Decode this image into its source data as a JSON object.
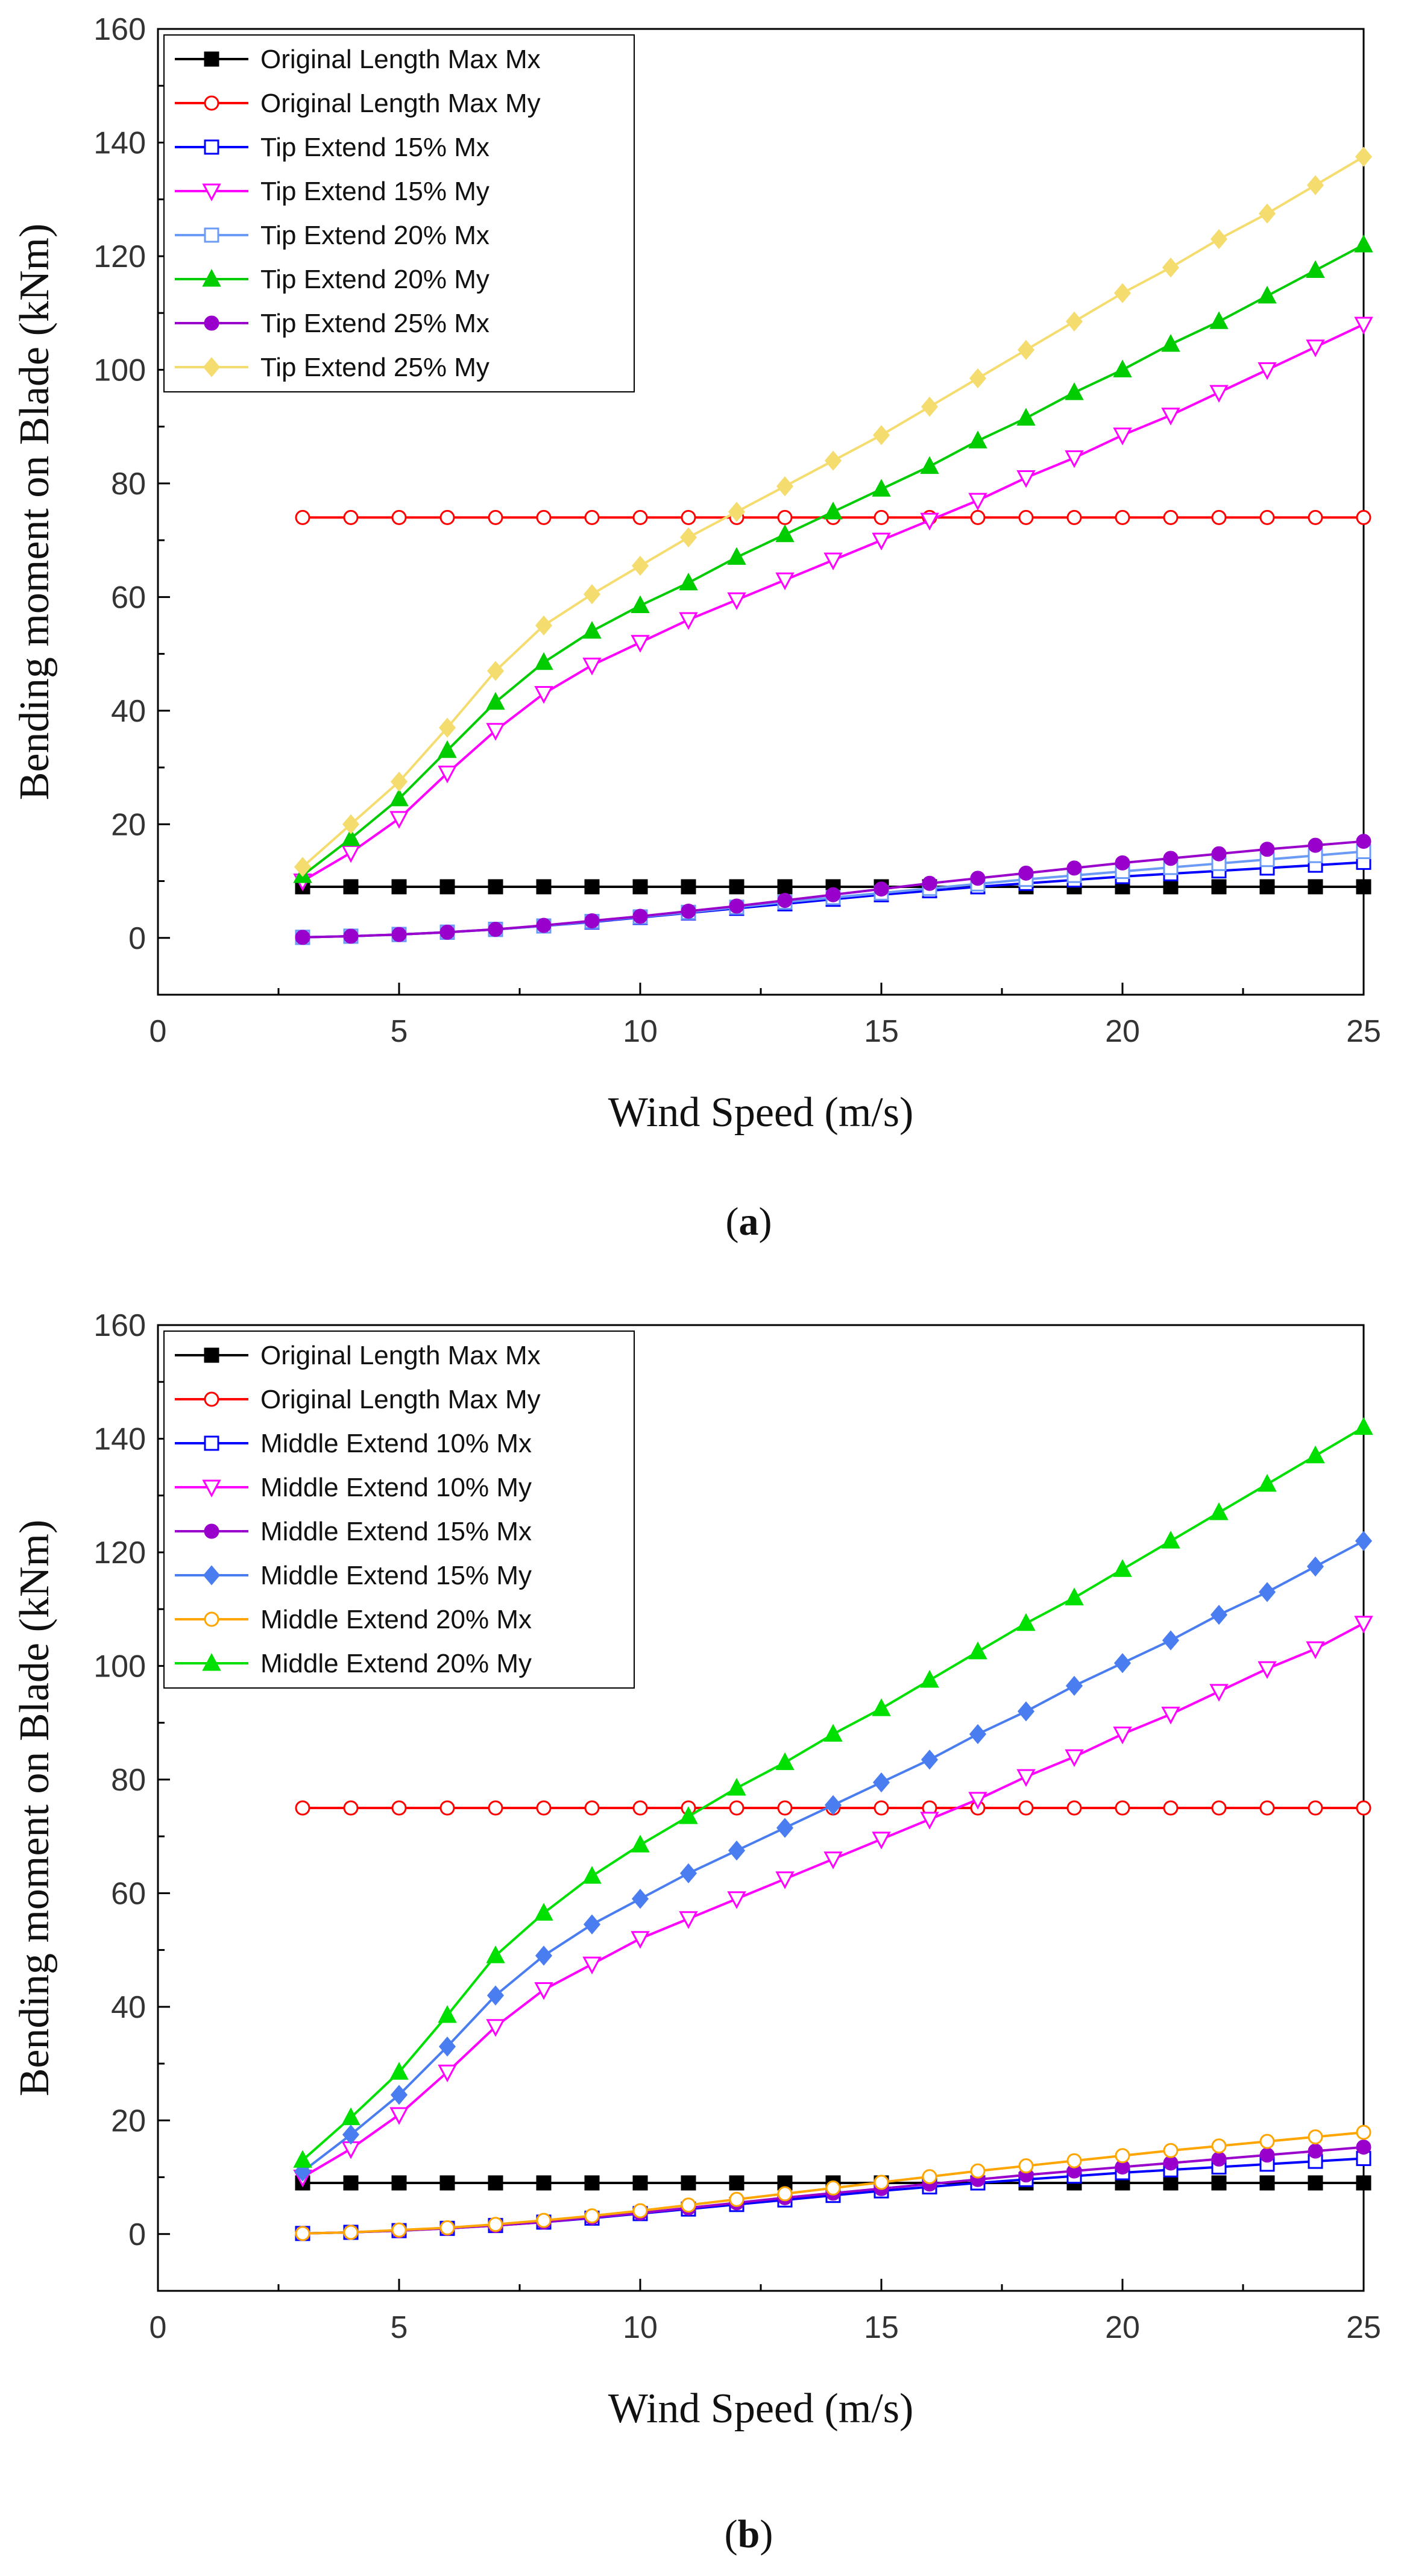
{
  "chart_data": [
    {
      "type": "line",
      "caption_open": "(",
      "caption": "a",
      "caption_close": ")",
      "xlabel": "Wind Speed (m/s)",
      "ylabel": "Bending moment on Blade (kNm)",
      "xlim": [
        0,
        25
      ],
      "ylim": [
        -10,
        160
      ],
      "xticks": [
        0,
        5,
        10,
        15,
        20,
        25
      ],
      "yticks": [
        0,
        20,
        40,
        60,
        80,
        100,
        120,
        140,
        160
      ],
      "x": [
        3,
        4,
        5,
        6,
        7,
        8,
        9,
        10,
        11,
        12,
        13,
        14,
        15,
        16,
        17,
        18,
        19,
        20,
        21,
        22,
        23,
        24,
        25
      ],
      "legend_position": "top-left",
      "series": [
        {
          "name": "Original Length Max Mx",
          "color": "#000000",
          "marker": "square",
          "filled": true,
          "values": [
            9,
            9,
            9,
            9,
            9,
            9,
            9,
            9,
            9,
            9,
            9,
            9,
            9,
            9,
            9,
            9,
            9,
            9,
            9,
            9,
            9,
            9,
            9
          ]
        },
        {
          "name": "Original Length Max My",
          "color": "#ff0000",
          "marker": "circle",
          "filled": false,
          "values": [
            74,
            74,
            74,
            74,
            74,
            74,
            74,
            74,
            74,
            74,
            74,
            74,
            74,
            74,
            74,
            74,
            74,
            74,
            74,
            74,
            74,
            74,
            74
          ]
        },
        {
          "name": "Tip Extend 15% Mx",
          "color": "#0000ff",
          "marker": "square",
          "filled": false,
          "values": [
            0.1,
            0.3,
            0.6,
            1.0,
            1.5,
            2.1,
            2.8,
            3.6,
            4.4,
            5.2,
            6.0,
            6.8,
            7.6,
            8.3,
            9.0,
            9.6,
            10.2,
            10.8,
            11.3,
            11.8,
            12.3,
            12.8,
            13.3
          ]
        },
        {
          "name": "Tip Extend 15% My",
          "color": "#ff00ff",
          "marker": "triangle-down",
          "filled": false,
          "values": [
            10,
            15,
            21,
            29,
            36.5,
            43,
            48,
            52,
            56,
            59.5,
            63,
            66.5,
            70,
            73.5,
            77,
            81,
            84.5,
            88.5,
            92,
            96,
            100,
            104,
            108
          ]
        },
        {
          "name": "Tip Extend 20% Mx",
          "color": "#6b9bf5",
          "marker": "square",
          "filled": false,
          "values": [
            0.1,
            0.3,
            0.6,
            1.0,
            1.5,
            2.1,
            2.9,
            3.7,
            4.5,
            5.4,
            6.3,
            7.1,
            7.9,
            8.7,
            9.5,
            10.3,
            11.0,
            11.7,
            12.4,
            13.1,
            13.8,
            14.5,
            15.2
          ]
        },
        {
          "name": "Tip Extend 20% My",
          "color": "#00cc00",
          "marker": "triangle-up",
          "filled": true,
          "values": [
            11,
            17.5,
            24.5,
            33,
            41.5,
            48.5,
            54,
            58.5,
            62.5,
            67,
            71,
            75,
            79,
            83,
            87.5,
            91.5,
            96,
            100,
            104.5,
            108.5,
            113,
            117.5,
            122
          ]
        },
        {
          "name": "Tip Extend 25% Mx",
          "color": "#9900cc",
          "marker": "circle",
          "filled": true,
          "values": [
            0.1,
            0.3,
            0.6,
            1.0,
            1.5,
            2.2,
            3.0,
            3.8,
            4.7,
            5.6,
            6.6,
            7.6,
            8.6,
            9.6,
            10.5,
            11.4,
            12.3,
            13.2,
            14.0,
            14.8,
            15.6,
            16.3,
            17.0
          ]
        },
        {
          "name": "Tip Extend 25% My",
          "color": "#f5dc6e",
          "marker": "diamond",
          "filled": true,
          "values": [
            12.5,
            20,
            27.5,
            37,
            47,
            55,
            60.5,
            65.5,
            70.5,
            75,
            79.5,
            84,
            88.5,
            93.5,
            98.5,
            103.5,
            108.5,
            113.5,
            118,
            123,
            127.5,
            132.5,
            137.5
          ]
        }
      ]
    },
    {
      "type": "line",
      "caption_open": "(",
      "caption": "b",
      "caption_close": ")",
      "xlabel": "Wind Speed (m/s)",
      "ylabel": "Bending moment on Blade (kNm)",
      "xlim": [
        0,
        25
      ],
      "ylim": [
        -10,
        160
      ],
      "xticks": [
        0,
        5,
        10,
        15,
        20,
        25
      ],
      "yticks": [
        0,
        20,
        40,
        60,
        80,
        100,
        120,
        140,
        160
      ],
      "x": [
        3,
        4,
        5,
        6,
        7,
        8,
        9,
        10,
        11,
        12,
        13,
        14,
        15,
        16,
        17,
        18,
        19,
        20,
        21,
        22,
        23,
        24,
        25
      ],
      "legend_position": "top-left",
      "series": [
        {
          "name": "Original Length Max Mx",
          "color": "#000000",
          "marker": "square",
          "filled": true,
          "values": [
            9,
            9,
            9,
            9,
            9,
            9,
            9,
            9,
            9,
            9,
            9,
            9,
            9,
            9,
            9,
            9,
            9,
            9,
            9,
            9,
            9,
            9,
            9
          ]
        },
        {
          "name": "Original Length Max My",
          "color": "#ff0000",
          "marker": "circle",
          "filled": false,
          "values": [
            75,
            75,
            75,
            75,
            75,
            75,
            75,
            75,
            75,
            75,
            75,
            75,
            75,
            75,
            75,
            75,
            75,
            75,
            75,
            75,
            75,
            75,
            75
          ]
        },
        {
          "name": "Middle Extend 10% Mx",
          "color": "#0000ff",
          "marker": "square",
          "filled": false,
          "values": [
            0.1,
            0.3,
            0.6,
            1.0,
            1.5,
            2.1,
            2.8,
            3.6,
            4.4,
            5.2,
            6.0,
            6.8,
            7.6,
            8.3,
            9.0,
            9.6,
            10.2,
            10.8,
            11.3,
            11.8,
            12.3,
            12.8,
            13.3
          ]
        },
        {
          "name": "Middle Extend 10% My",
          "color": "#ff00ff",
          "marker": "triangle-down",
          "filled": false,
          "values": [
            10,
            15,
            21,
            28.5,
            36.5,
            43,
            47.5,
            52,
            55.5,
            59,
            62.5,
            66,
            69.5,
            73,
            76.5,
            80.5,
            84,
            88,
            91.5,
            95.5,
            99.5,
            103,
            107.5
          ]
        },
        {
          "name": "Middle Extend 15% Mx",
          "color": "#9900cc",
          "marker": "circle",
          "filled": true,
          "values": [
            0.1,
            0.3,
            0.6,
            1.0,
            1.5,
            2.1,
            2.9,
            3.7,
            4.6,
            5.5,
            6.4,
            7.2,
            8.0,
            8.8,
            9.6,
            10.4,
            11.1,
            11.8,
            12.5,
            13.2,
            13.9,
            14.6,
            15.3
          ]
        },
        {
          "name": "Middle Extend 15% My",
          "color": "#4a7df0",
          "marker": "diamond",
          "filled": true,
          "values": [
            11,
            17.5,
            24.5,
            33,
            42,
            49,
            54.5,
            59,
            63.5,
            67.5,
            71.5,
            75.5,
            79.5,
            83.5,
            88,
            92,
            96.5,
            100.5,
            104.5,
            109,
            113,
            117.5,
            122
          ]
        },
        {
          "name": "Middle Extend 20% Mx",
          "color": "#ffa500",
          "marker": "circle",
          "filled": false,
          "values": [
            0.1,
            0.3,
            0.7,
            1.1,
            1.7,
            2.4,
            3.2,
            4.1,
            5.1,
            6.1,
            7.1,
            8.1,
            9.1,
            10.1,
            11.1,
            12.0,
            12.9,
            13.8,
            14.7,
            15.5,
            16.3,
            17.1,
            17.9
          ]
        },
        {
          "name": "Middle Extend 20% My",
          "color": "#00e000",
          "marker": "triangle-up",
          "filled": true,
          "values": [
            13,
            20.5,
            28.5,
            38.5,
            49,
            56.5,
            63,
            68.5,
            73.5,
            78.5,
            83,
            88,
            92.5,
            97.5,
            102.5,
            107.5,
            112,
            117,
            122,
            127,
            132,
            137,
            142
          ]
        }
      ]
    }
  ]
}
